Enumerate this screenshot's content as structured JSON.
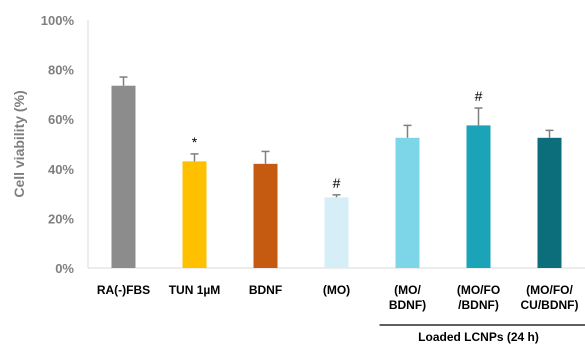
{
  "chart_data": {
    "type": "bar",
    "ylabel": "Cell viability (%)",
    "ylim": [
      0,
      100
    ],
    "yticks": [
      "0%",
      "20%",
      "40%",
      "60%",
      "80%",
      "100%"
    ],
    "categories": [
      [
        "RA(-)FBS"
      ],
      [
        "TUN 1µM"
      ],
      [
        "BDNF"
      ],
      [
        "(MO)"
      ],
      [
        "(MO/",
        "BDNF)"
      ],
      [
        "(MO/FO",
        "/BDNF)"
      ],
      [
        "(MO/FO/",
        "CU/BDNF)"
      ]
    ],
    "values": [
      73.5,
      43,
      42,
      28.5,
      52.5,
      57.5,
      52.5
    ],
    "errors": [
      3.5,
      3,
      5,
      1,
      5,
      7,
      3
    ],
    "colors": [
      "#8c8c8c",
      "#ffc000",
      "#c55a11",
      "#d6eef8",
      "#7dd6e8",
      "#1ba3b8",
      "#0c6e7a"
    ],
    "annotations": [
      "",
      "*",
      "",
      "#",
      "",
      "#",
      ""
    ],
    "group_label": "Loaded LCNPs (24 h)",
    "grid": false
  }
}
